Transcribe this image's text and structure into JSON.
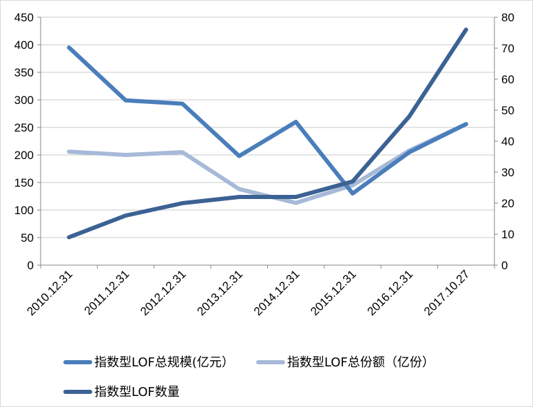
{
  "chart_data": {
    "type": "line",
    "categories": [
      "2010.12.31",
      "2011.12.31",
      "2012.12.31",
      "2013.12.31",
      "2014.12.31",
      "2015.12.31",
      "2016.12.31",
      "2017.10.27"
    ],
    "left_axis": {
      "ylim": [
        0,
        450
      ],
      "ticks": [
        0,
        50,
        100,
        150,
        200,
        250,
        300,
        350,
        400,
        450
      ]
    },
    "right_axis": {
      "ylim": [
        0,
        80
      ],
      "ticks": [
        0,
        10,
        20,
        30,
        40,
        50,
        60,
        70,
        80
      ]
    },
    "grid": "horizontal",
    "legend_position": "bottom",
    "series": [
      {
        "name": "指数型LOF总规模(亿元）",
        "axis": "left",
        "color": "#4a7ebb",
        "values": [
          395,
          299,
          293,
          198,
          260,
          130,
          205,
          256
        ]
      },
      {
        "name": "指数型LOF总份额（亿份）",
        "axis": "left",
        "color": "#a7b9d8",
        "values": [
          206,
          200,
          205,
          138,
          113,
          145,
          208,
          256
        ]
      },
      {
        "name": "指数型LOF数量",
        "axis": "right",
        "color": "#3c6294",
        "values": [
          9,
          16,
          20,
          22,
          22,
          27,
          48,
          76
        ]
      }
    ]
  }
}
